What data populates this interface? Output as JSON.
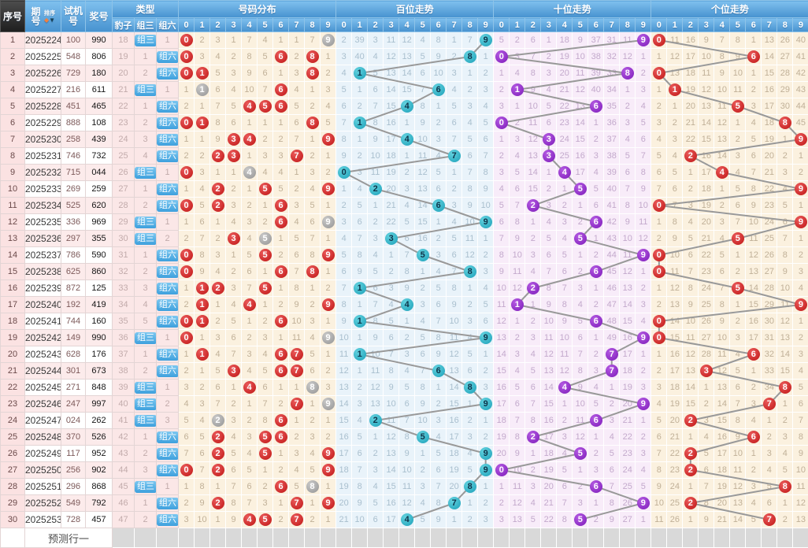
{
  "header": {
    "seq": "序号",
    "period": "期号",
    "sort": "排序",
    "sort_up_icon": "◆",
    "sort_down_icon": "▼",
    "test": "试机号",
    "prize": "奖号",
    "type_group": "类型",
    "baozi": "豹子",
    "zusan": "组三",
    "zuliu": "组六",
    "sections": [
      {
        "key": "dist",
        "label": "号码分布"
      },
      {
        "key": "bai",
        "label": "百位走势"
      },
      {
        "key": "shi",
        "label": "十位走势"
      },
      {
        "key": "ge",
        "label": "个位走势"
      }
    ],
    "digits": [
      "0",
      "1",
      "2",
      "3",
      "4",
      "5",
      "6",
      "7",
      "8",
      "9"
    ]
  },
  "footer": {
    "label": "预测行一"
  },
  "colors": {
    "header_blue": "#4792cf",
    "header_dark": "#2a2a2a",
    "circle_red": "#bf1515",
    "circle_gray": "#949494",
    "circle_teal": "#1ba0b8",
    "circle_purple": "#7d1bb9",
    "badge_blue": "#3ea0dd",
    "trend_line": "#999999",
    "section_cream": "#fbf1df",
    "section_blue": "#e9f3fa",
    "section_pink": "#f8ecf9",
    "footer_gray": "#d9d9d9"
  },
  "chart_data": {
    "type": "table",
    "description": "3D lottery trend chart; miss counts increment until a digit hits (circled). Gray circle = digit repeated twice in prize (组三 rows).",
    "baseline_row1_miss": {
      "dist": [
        0,
        2,
        3,
        1,
        7,
        4,
        1,
        1,
        7,
        0
      ],
      "bai": [
        2,
        39,
        3,
        11,
        12,
        4,
        8,
        1,
        7,
        0
      ],
      "shi": [
        5,
        2,
        6,
        1,
        18,
        9,
        37,
        31,
        11,
        0
      ],
      "ge": [
        0,
        11,
        16,
        9,
        7,
        8,
        1,
        13,
        26,
        40
      ]
    },
    "rows": [
      {
        "seq": 1,
        "period": "2025224",
        "test": "100",
        "prize": "990",
        "baozi": "18",
        "zusan": "组三",
        "zuliu": "1"
      },
      {
        "seq": 2,
        "period": "2025225",
        "test": "548",
        "prize": "806",
        "baozi": "19",
        "zusan": "1",
        "zuliu": "组六"
      },
      {
        "seq": 3,
        "period": "2025226",
        "test": "729",
        "prize": "180",
        "baozi": "20",
        "zusan": "2",
        "zuliu": "组六"
      },
      {
        "seq": 4,
        "period": "2025227",
        "test": "216",
        "prize": "611",
        "baozi": "21",
        "zusan": "组三",
        "zuliu": "1"
      },
      {
        "seq": 5,
        "period": "2025228",
        "test": "451",
        "prize": "465",
        "baozi": "22",
        "zusan": "1",
        "zuliu": "组六"
      },
      {
        "seq": 6,
        "period": "2025229",
        "test": "888",
        "prize": "108",
        "baozi": "23",
        "zusan": "2",
        "zuliu": "组六"
      },
      {
        "seq": 7,
        "period": "2025230",
        "test": "258",
        "prize": "439",
        "baozi": "24",
        "zusan": "3",
        "zuliu": "组六"
      },
      {
        "seq": 8,
        "period": "2025231",
        "test": "746",
        "prize": "732",
        "baozi": "25",
        "zusan": "4",
        "zuliu": "组六"
      },
      {
        "seq": 9,
        "period": "2025232",
        "test": "715",
        "prize": "044",
        "baozi": "26",
        "zusan": "组三",
        "zuliu": "1"
      },
      {
        "seq": 10,
        "period": "2025233",
        "test": "269",
        "prize": "259",
        "baozi": "27",
        "zusan": "1",
        "zuliu": "组六"
      },
      {
        "seq": 11,
        "period": "2025234",
        "test": "525",
        "prize": "620",
        "baozi": "28",
        "zusan": "2",
        "zuliu": "组六"
      },
      {
        "seq": 12,
        "period": "2025235",
        "test": "336",
        "prize": "969",
        "baozi": "29",
        "zusan": "组三",
        "zuliu": "1"
      },
      {
        "seq": 13,
        "period": "2025236",
        "test": "297",
        "prize": "355",
        "baozi": "30",
        "zusan": "组三",
        "zuliu": "2"
      },
      {
        "seq": 14,
        "period": "2025237",
        "test": "786",
        "prize": "590",
        "baozi": "31",
        "zusan": "1",
        "zuliu": "组六"
      },
      {
        "seq": 15,
        "period": "2025238",
        "test": "625",
        "prize": "860",
        "baozi": "32",
        "zusan": "2",
        "zuliu": "组六"
      },
      {
        "seq": 16,
        "period": "2025239",
        "test": "872",
        "prize": "125",
        "baozi": "33",
        "zusan": "3",
        "zuliu": "组六"
      },
      {
        "seq": 17,
        "period": "2025240",
        "test": "192",
        "prize": "419",
        "baozi": "34",
        "zusan": "4",
        "zuliu": "组六"
      },
      {
        "seq": 18,
        "period": "2025241",
        "test": "744",
        "prize": "160",
        "baozi": "35",
        "zusan": "5",
        "zuliu": "组六"
      },
      {
        "seq": 19,
        "period": "2025242",
        "test": "149",
        "prize": "990",
        "baozi": "36",
        "zusan": "组三",
        "zuliu": "1"
      },
      {
        "seq": 20,
        "period": "2025243",
        "test": "628",
        "prize": "176",
        "baozi": "37",
        "zusan": "1",
        "zuliu": "组六"
      },
      {
        "seq": 21,
        "period": "2025244",
        "test": "301",
        "prize": "673",
        "baozi": "38",
        "zusan": "2",
        "zuliu": "组六"
      },
      {
        "seq": 22,
        "period": "2025245",
        "test": "271",
        "prize": "848",
        "baozi": "39",
        "zusan": "组三",
        "zuliu": "1"
      },
      {
        "seq": 23,
        "period": "2025246",
        "test": "247",
        "prize": "997",
        "baozi": "40",
        "zusan": "组三",
        "zuliu": "2"
      },
      {
        "seq": 24,
        "period": "2025247",
        "test": "024",
        "prize": "262",
        "baozi": "41",
        "zusan": "组三",
        "zuliu": "3"
      },
      {
        "seq": 25,
        "period": "2025248",
        "test": "370",
        "prize": "526",
        "baozi": "42",
        "zusan": "1",
        "zuliu": "组六"
      },
      {
        "seq": 26,
        "period": "2025249",
        "test": "117",
        "prize": "952",
        "baozi": "43",
        "zusan": "2",
        "zuliu": "组六"
      },
      {
        "seq": 27,
        "period": "2025250",
        "test": "256",
        "prize": "902",
        "baozi": "44",
        "zusan": "3",
        "zuliu": "组六"
      },
      {
        "seq": 28,
        "period": "2025251",
        "test": "296",
        "prize": "868",
        "baozi": "45",
        "zusan": "组三",
        "zuliu": "1"
      },
      {
        "seq": 29,
        "period": "2025252",
        "test": "549",
        "prize": "792",
        "baozi": "46",
        "zusan": "1",
        "zuliu": "组六"
      },
      {
        "seq": 30,
        "period": "2025253",
        "test": "728",
        "prize": "457",
        "baozi": "47",
        "zusan": "2",
        "zuliu": "组六"
      }
    ]
  }
}
